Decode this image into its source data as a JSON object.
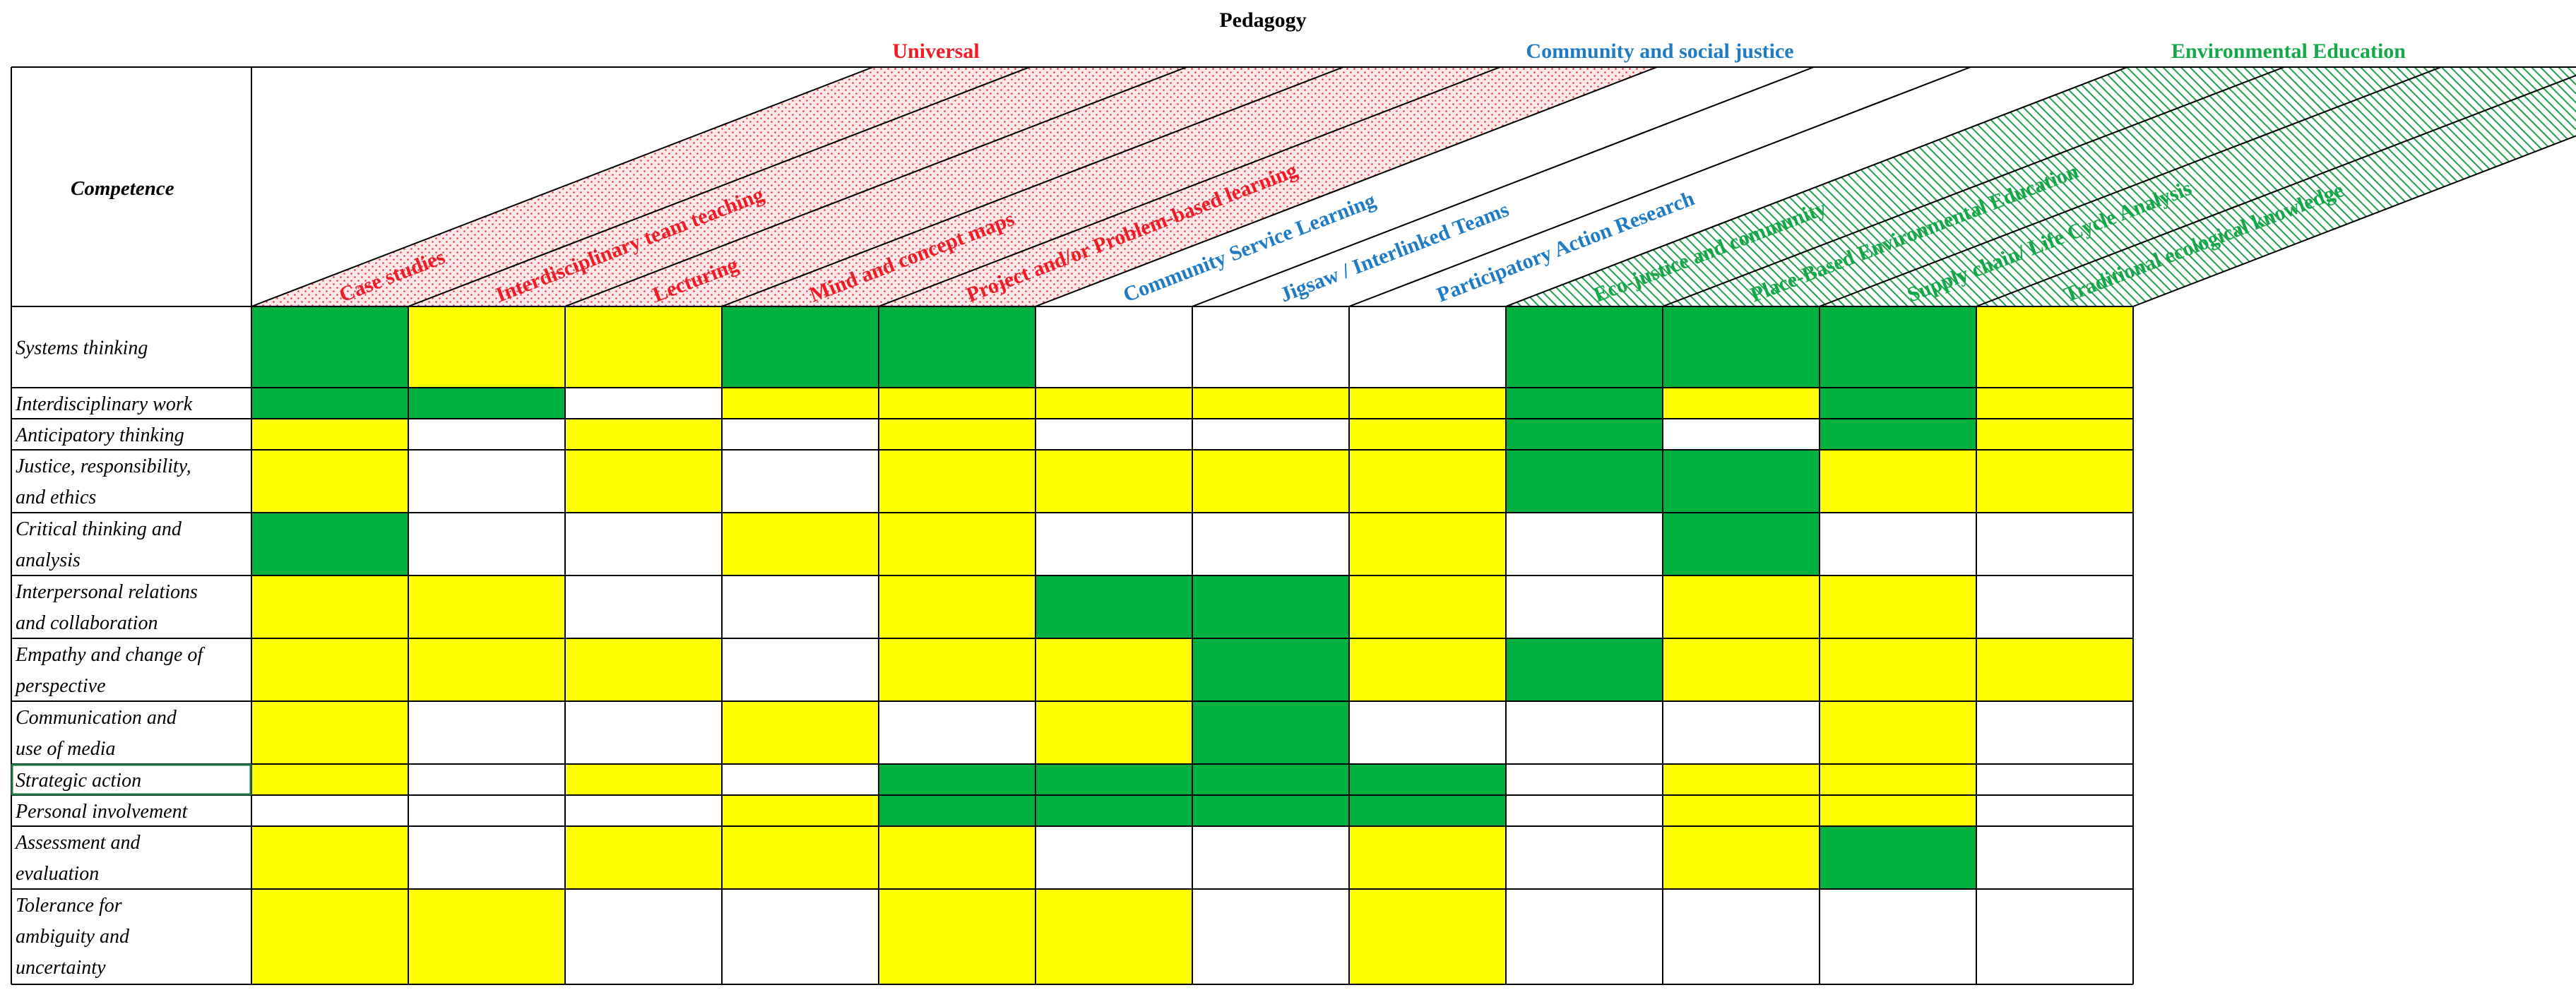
{
  "header": {
    "title": "Pedagogy",
    "row_header": "Competence"
  },
  "colors": {
    "universal": "#ee1c25",
    "community": "#1f7bc4",
    "environmental": "#15a84a",
    "strong": "#00b140",
    "medium": "#ffff00",
    "none": "#ffffff",
    "grid": "#000000",
    "selection": "#217346"
  },
  "chart_data": {
    "type": "heatmap",
    "title": "Pedagogy",
    "row_header": "Competence",
    "groups": [
      {
        "name": "Universal",
        "color_key": "universal",
        "columns": [
          "Case studies",
          "Interdisciplinary team teaching",
          "Lecturing",
          "Mind and concept maps",
          "Project and/or Problem-based learning"
        ]
      },
      {
        "name": "Community and social justice",
        "color_key": "community",
        "columns": [
          "Community Service Learning",
          "Jigsaw / Interlinked Teams",
          "Participatory Action Research"
        ]
      },
      {
        "name": "Environmental Education",
        "color_key": "environmental",
        "columns": [
          "Eco-justice and community",
          "Place-Based Environmental Education",
          "Supply chain/ Life Cycle Analysis",
          "Traditional ecological knowledge"
        ]
      }
    ],
    "columns": [
      "Case studies",
      "Interdisciplinary team teaching",
      "Lecturing",
      "Mind and concept maps",
      "Project and/or Problem-based learning",
      "Community Service Learning",
      "Jigsaw / Interlinked Teams",
      "Participatory Action Research",
      "Eco-justice and community",
      "Place-Based Environmental Education",
      "Supply chain/ Life Cycle Analysis",
      "Traditional ecological knowledge"
    ],
    "rows": [
      {
        "label": [
          "Systems thinking"
        ],
        "values": [
          2,
          1,
          1,
          2,
          2,
          0,
          0,
          0,
          2,
          2,
          2,
          1
        ]
      },
      {
        "label": [
          "Interdisciplinary work"
        ],
        "values": [
          2,
          2,
          0,
          1,
          1,
          1,
          1,
          1,
          2,
          1,
          2,
          1
        ]
      },
      {
        "label": [
          "Anticipatory thinking"
        ],
        "values": [
          1,
          0,
          1,
          0,
          1,
          0,
          0,
          1,
          2,
          0,
          2,
          1
        ]
      },
      {
        "label": [
          "Justice, responsibility,",
          "and ethics"
        ],
        "values": [
          1,
          0,
          1,
          0,
          1,
          1,
          1,
          1,
          2,
          2,
          1,
          1
        ]
      },
      {
        "label": [
          "Critical thinking and",
          "analysis"
        ],
        "values": [
          2,
          0,
          0,
          1,
          1,
          0,
          0,
          1,
          0,
          2,
          0,
          0
        ]
      },
      {
        "label": [
          "Interpersonal relations",
          "and collaboration"
        ],
        "values": [
          1,
          1,
          0,
          0,
          1,
          2,
          2,
          1,
          0,
          1,
          1,
          0
        ]
      },
      {
        "label": [
          "Empathy and change of",
          "perspective"
        ],
        "values": [
          1,
          1,
          1,
          0,
          1,
          1,
          2,
          1,
          2,
          1,
          1,
          1
        ]
      },
      {
        "label": [
          "Communication and",
          "use of media"
        ],
        "values": [
          1,
          0,
          0,
          1,
          0,
          1,
          2,
          0,
          0,
          0,
          1,
          0
        ]
      },
      {
        "label": [
          "Strategic action"
        ],
        "values": [
          1,
          0,
          1,
          0,
          2,
          2,
          2,
          2,
          0,
          1,
          1,
          0
        ]
      },
      {
        "label": [
          "Personal involvement"
        ],
        "values": [
          0,
          0,
          0,
          1,
          2,
          2,
          2,
          2,
          0,
          1,
          1,
          0
        ]
      },
      {
        "label": [
          "Assessment and",
          "evaluation"
        ],
        "values": [
          1,
          0,
          1,
          1,
          1,
          0,
          0,
          1,
          0,
          1,
          2,
          0
        ]
      },
      {
        "label": [
          "Tolerance for",
          "ambiguity and",
          "uncertainty"
        ],
        "values": [
          1,
          1,
          0,
          0,
          1,
          1,
          0,
          1,
          0,
          0,
          0,
          0
        ]
      }
    ],
    "selected_row": 8
  }
}
